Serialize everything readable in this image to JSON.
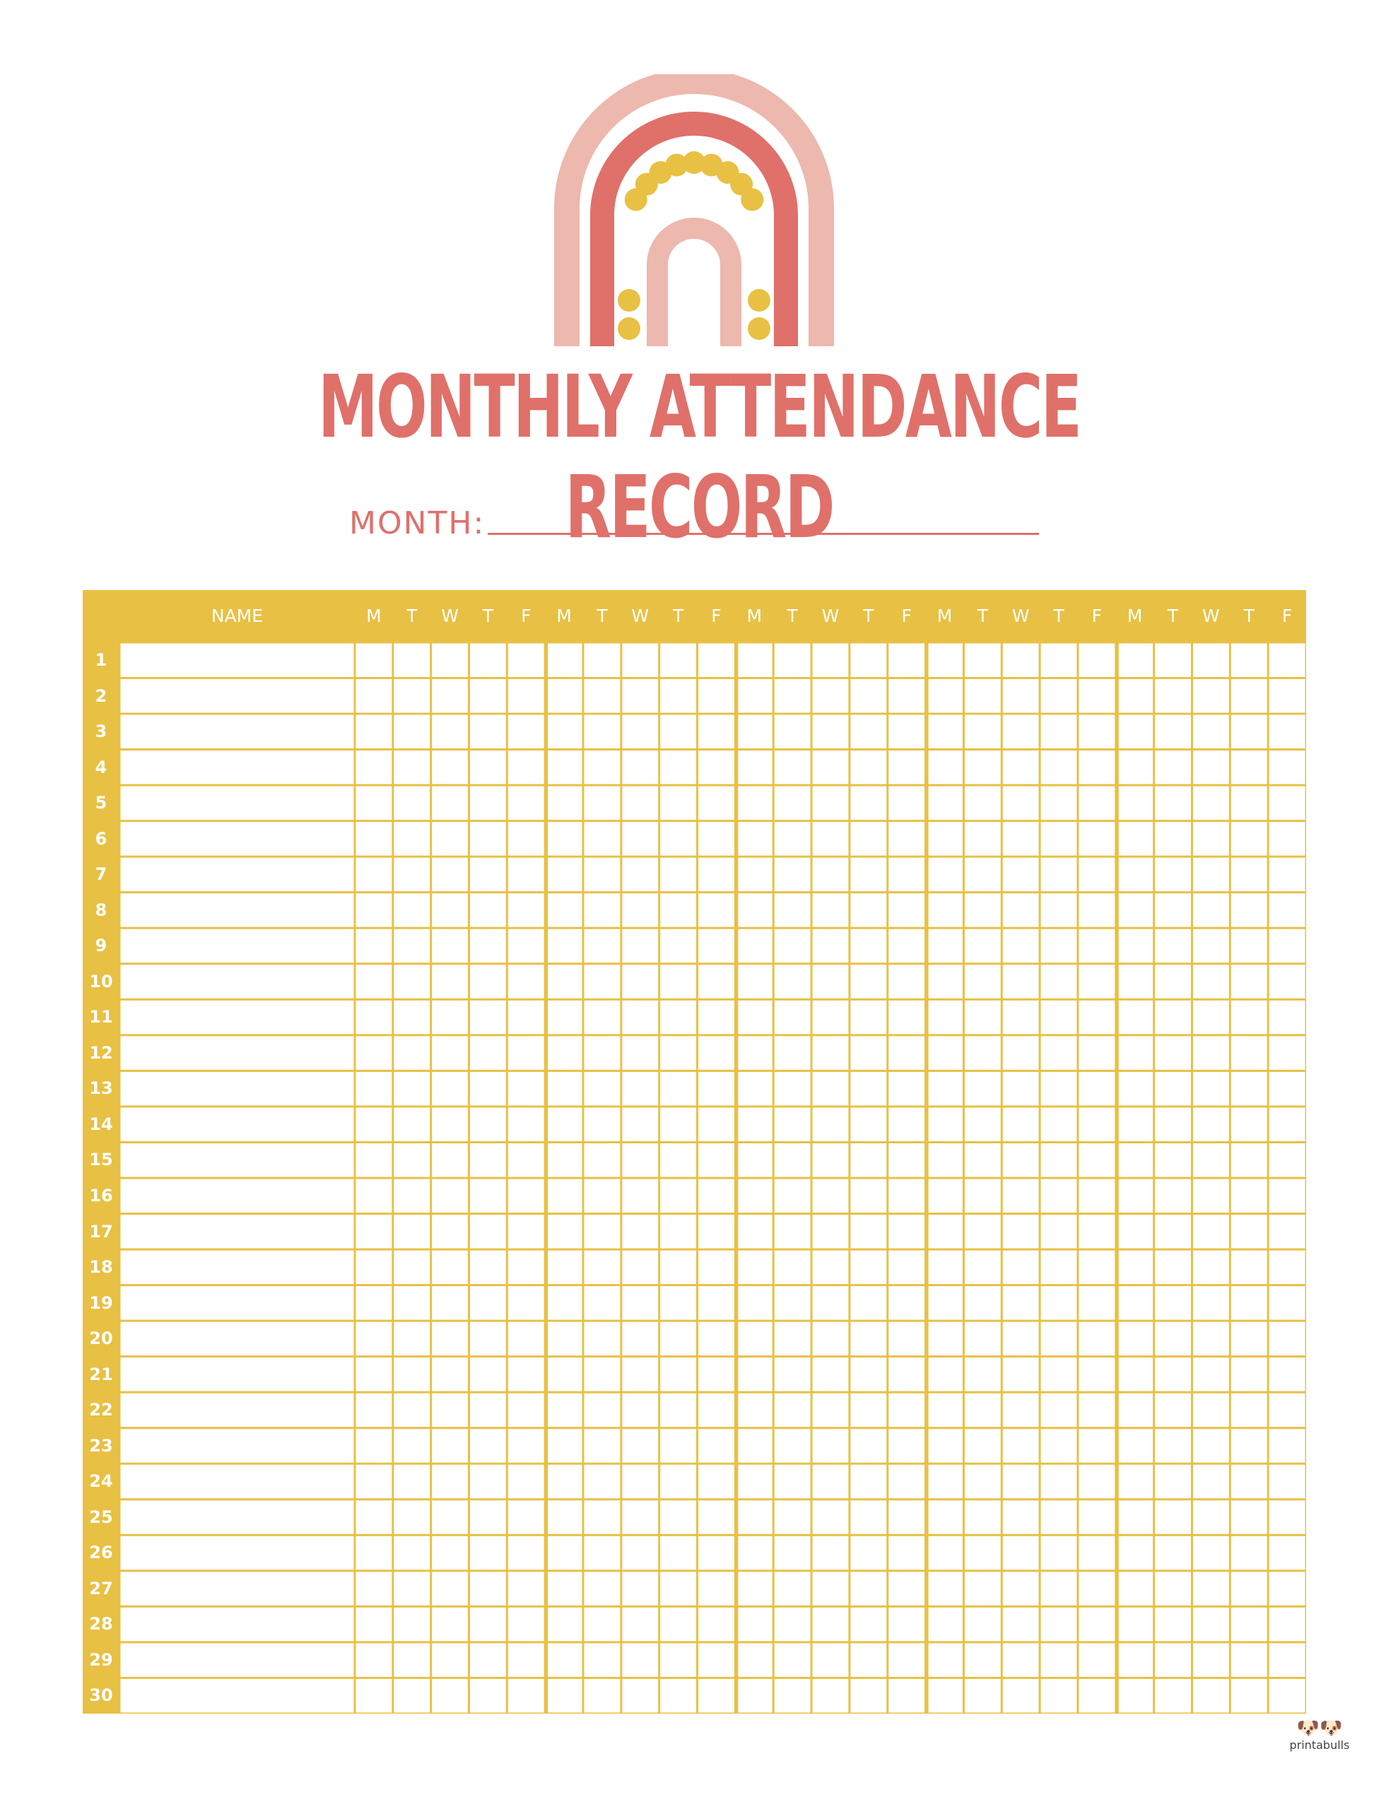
{
  "title": "MONTHLY ATTENDANCE RECORD",
  "month_label": "MONTH:",
  "month_value": "",
  "table": {
    "name_header": "NAME",
    "days": [
      "M",
      "T",
      "W",
      "T",
      "F",
      "M",
      "T",
      "W",
      "T",
      "F",
      "M",
      "T",
      "W",
      "T",
      "F",
      "M",
      "T",
      "W",
      "T",
      "F",
      "M",
      "T",
      "W",
      "T",
      "F"
    ],
    "rows": [
      "1",
      "2",
      "3",
      "4",
      "5",
      "6",
      "7",
      "8",
      "9",
      "10",
      "11",
      "12",
      "13",
      "14",
      "15",
      "16",
      "17",
      "18",
      "19",
      "20",
      "21",
      "22",
      "23",
      "24",
      "25",
      "26",
      "27",
      "28",
      "29",
      "30"
    ]
  },
  "logo": {
    "text": "printabulls"
  },
  "colors": {
    "yellow": "#E8C043",
    "coral": "#E0706A",
    "pink": "#EDB8AE"
  }
}
